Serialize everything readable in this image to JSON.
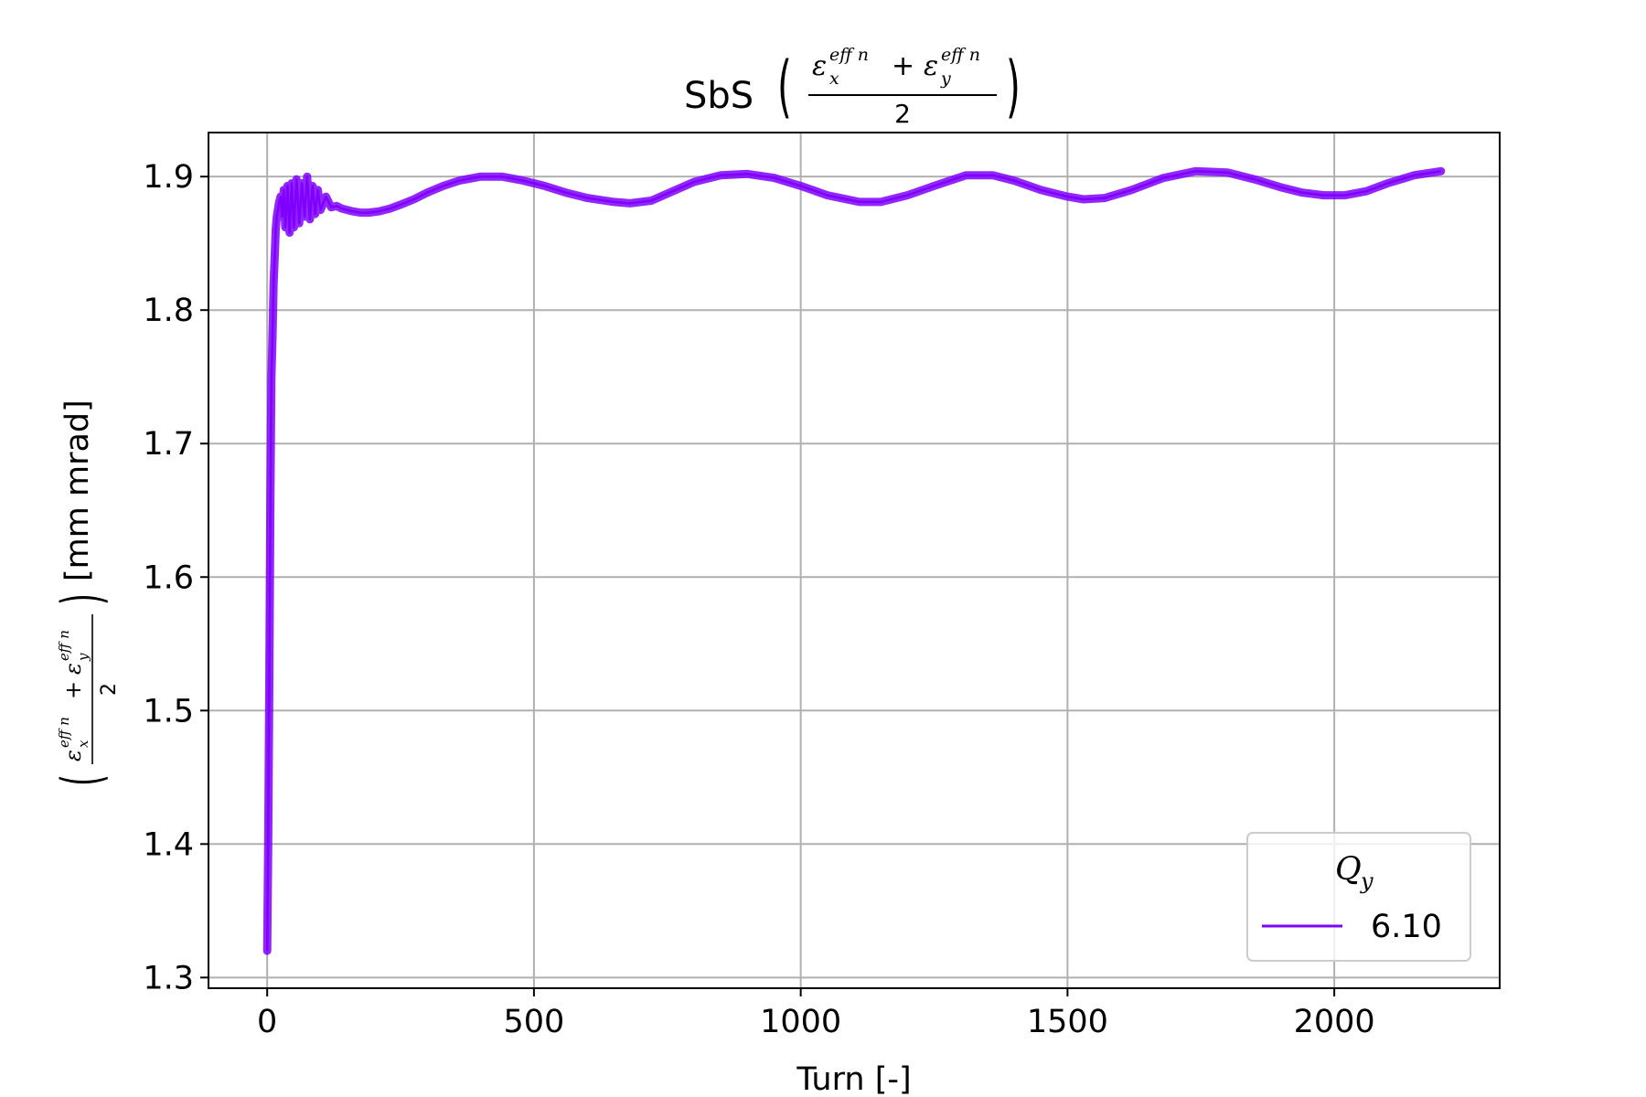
{
  "chart_data": {
    "type": "line",
    "title": {
      "prefix": "SbS",
      "numerator_a": "ε",
      "sub_a": "x",
      "sup_a": "eff n",
      "plus": "+",
      "numerator_b": "ε",
      "sub_b": "y",
      "sup_b": "eff n",
      "denominator": "2"
    },
    "xlabel": "Turn [-]",
    "ylabel": {
      "numerator_a": "ε",
      "sub_a": "x",
      "sup_a": "eff n",
      "plus": "+",
      "numerator_b": "ε",
      "sub_b": "y",
      "sup_b": "eff n",
      "denominator": "2",
      "units": "[mm mrad]"
    },
    "xlim": [
      -110,
      2310
    ],
    "ylim": [
      1.292,
      1.933
    ],
    "xticks": [
      0,
      500,
      1000,
      1500,
      2000
    ],
    "xtick_labels": [
      "0",
      "500",
      "1000",
      "1500",
      "2000"
    ],
    "yticks": [
      1.3,
      1.4,
      1.5,
      1.6,
      1.7,
      1.8,
      1.9
    ],
    "ytick_labels": [
      "1.3",
      "1.4",
      "1.5",
      "1.6",
      "1.7",
      "1.8",
      "1.9"
    ],
    "grid": true,
    "legend": {
      "title": "Q",
      "title_sub": "y",
      "placement": "lower-right",
      "entries": [
        {
          "label": "6.10",
          "color": "#7f00ff"
        }
      ]
    },
    "series": [
      {
        "name": "6.10",
        "color": "#7f00ff",
        "x": [
          0,
          2,
          4,
          6,
          8,
          10,
          12,
          14,
          16,
          18,
          20,
          22,
          25,
          28,
          31,
          34,
          38,
          42,
          46,
          50,
          55,
          60,
          65,
          70,
          75,
          80,
          85,
          90,
          95,
          100,
          110,
          120,
          130,
          140,
          150,
          160,
          175,
          190,
          210,
          230,
          250,
          275,
          300,
          330,
          360,
          400,
          440,
          480,
          520,
          560,
          600,
          650,
          680,
          720,
          760,
          800,
          850,
          900,
          950,
          1000,
          1050,
          1110,
          1150,
          1200,
          1250,
          1310,
          1360,
          1400,
          1450,
          1500,
          1530,
          1570,
          1620,
          1680,
          1740,
          1800,
          1850,
          1900,
          1940,
          1980,
          2020,
          2060,
          2100,
          2150,
          2200
        ],
        "y": [
          1.32,
          1.4,
          1.52,
          1.66,
          1.75,
          1.78,
          1.82,
          1.84,
          1.86,
          1.87,
          1.875,
          1.88,
          1.885,
          1.87,
          1.89,
          1.862,
          1.893,
          1.858,
          1.895,
          1.862,
          1.898,
          1.865,
          1.895,
          1.87,
          1.9,
          1.868,
          1.893,
          1.872,
          1.89,
          1.875,
          1.885,
          1.877,
          1.878,
          1.876,
          1.875,
          1.874,
          1.873,
          1.873,
          1.874,
          1.876,
          1.879,
          1.883,
          1.888,
          1.893,
          1.897,
          1.9,
          1.9,
          1.897,
          1.893,
          1.888,
          1.884,
          1.881,
          1.88,
          1.882,
          1.889,
          1.896,
          1.901,
          1.902,
          1.899,
          1.893,
          1.886,
          1.881,
          1.881,
          1.886,
          1.893,
          1.901,
          1.901,
          1.897,
          1.89,
          1.885,
          1.883,
          1.884,
          1.89,
          1.899,
          1.904,
          1.903,
          1.898,
          1.892,
          1.888,
          1.886,
          1.886,
          1.889,
          1.895,
          1.901,
          1.904
        ]
      }
    ]
  }
}
